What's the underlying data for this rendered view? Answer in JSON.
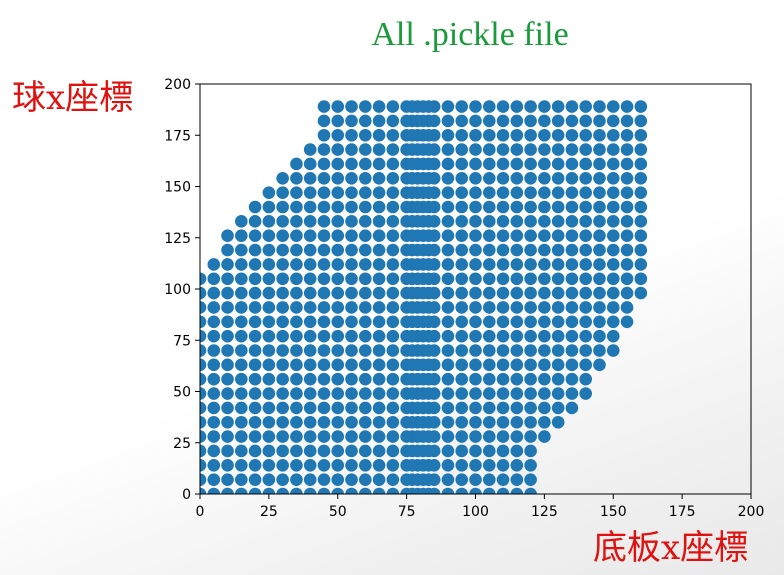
{
  "title": "All .pickle file",
  "ylabel": "球x座標",
  "xlabel": "底板x座標",
  "chart_data": {
    "type": "scatter",
    "title": "All .pickle file",
    "xlabel": "底板x座標",
    "ylabel": "球x座標",
    "xlim": [
      0,
      200
    ],
    "ylim": [
      0,
      200
    ],
    "xticks": [
      0,
      25,
      50,
      75,
      100,
      125,
      150,
      175,
      200
    ],
    "yticks": [
      0,
      25,
      50,
      75,
      100,
      125,
      150,
      175,
      200
    ],
    "grid": false,
    "marker_color": "#1f77b4",
    "description_of_points": "Regular lattice of points spaced 5 units in x and ~7 units in y; dense vertical band between x≈75 and x≈85",
    "grid_spacing": {
      "dx": 5,
      "dy": 7
    },
    "columns": [
      {
        "x": 0,
        "ymin": 0,
        "ymax": 105
      },
      {
        "x": 5,
        "ymin": 0,
        "ymax": 112
      },
      {
        "x": 10,
        "ymin": 0,
        "ymax": 132
      },
      {
        "x": 15,
        "ymin": 0,
        "ymax": 139
      },
      {
        "x": 20,
        "ymin": 0,
        "ymax": 146
      },
      {
        "x": 25,
        "ymin": 0,
        "ymax": 153
      },
      {
        "x": 30,
        "ymin": 0,
        "ymax": 160
      },
      {
        "x": 35,
        "ymin": 0,
        "ymax": 167
      },
      {
        "x": 40,
        "ymin": 0,
        "ymax": 174
      },
      {
        "x": 45,
        "ymin": 0,
        "ymax": 195
      },
      {
        "x": 50,
        "ymin": 0,
        "ymax": 195
      },
      {
        "x": 55,
        "ymin": 0,
        "ymax": 195
      },
      {
        "x": 60,
        "ymin": 0,
        "ymax": 195
      },
      {
        "x": 65,
        "ymin": 0,
        "ymax": 195
      },
      {
        "x": 70,
        "ymin": 0,
        "ymax": 195
      },
      {
        "x": 75,
        "ymin": 0,
        "ymax": 195
      },
      {
        "x": 77,
        "ymin": 0,
        "ymax": 195
      },
      {
        "x": 79,
        "ymin": 0,
        "ymax": 195
      },
      {
        "x": 81,
        "ymin": 0,
        "ymax": 195
      },
      {
        "x": 83,
        "ymin": 0,
        "ymax": 195
      },
      {
        "x": 85,
        "ymin": 0,
        "ymax": 195
      },
      {
        "x": 90,
        "ymin": 0,
        "ymax": 195
      },
      {
        "x": 95,
        "ymin": 0,
        "ymax": 195
      },
      {
        "x": 100,
        "ymin": 0,
        "ymax": 195
      },
      {
        "x": 105,
        "ymin": 0,
        "ymax": 195
      },
      {
        "x": 110,
        "ymin": 0,
        "ymax": 195
      },
      {
        "x": 115,
        "ymin": 0,
        "ymax": 195
      },
      {
        "x": 120,
        "ymin": 0,
        "ymax": 195
      },
      {
        "x": 125,
        "ymin": 28,
        "ymax": 195
      },
      {
        "x": 130,
        "ymin": 35,
        "ymax": 195
      },
      {
        "x": 135,
        "ymin": 42,
        "ymax": 195
      },
      {
        "x": 140,
        "ymin": 49,
        "ymax": 195
      },
      {
        "x": 145,
        "ymin": 63,
        "ymax": 195
      },
      {
        "x": 150,
        "ymin": 70,
        "ymax": 195
      },
      {
        "x": 155,
        "ymin": 84,
        "ymax": 195
      },
      {
        "x": 160,
        "ymin": 98,
        "ymax": 195
      }
    ]
  }
}
